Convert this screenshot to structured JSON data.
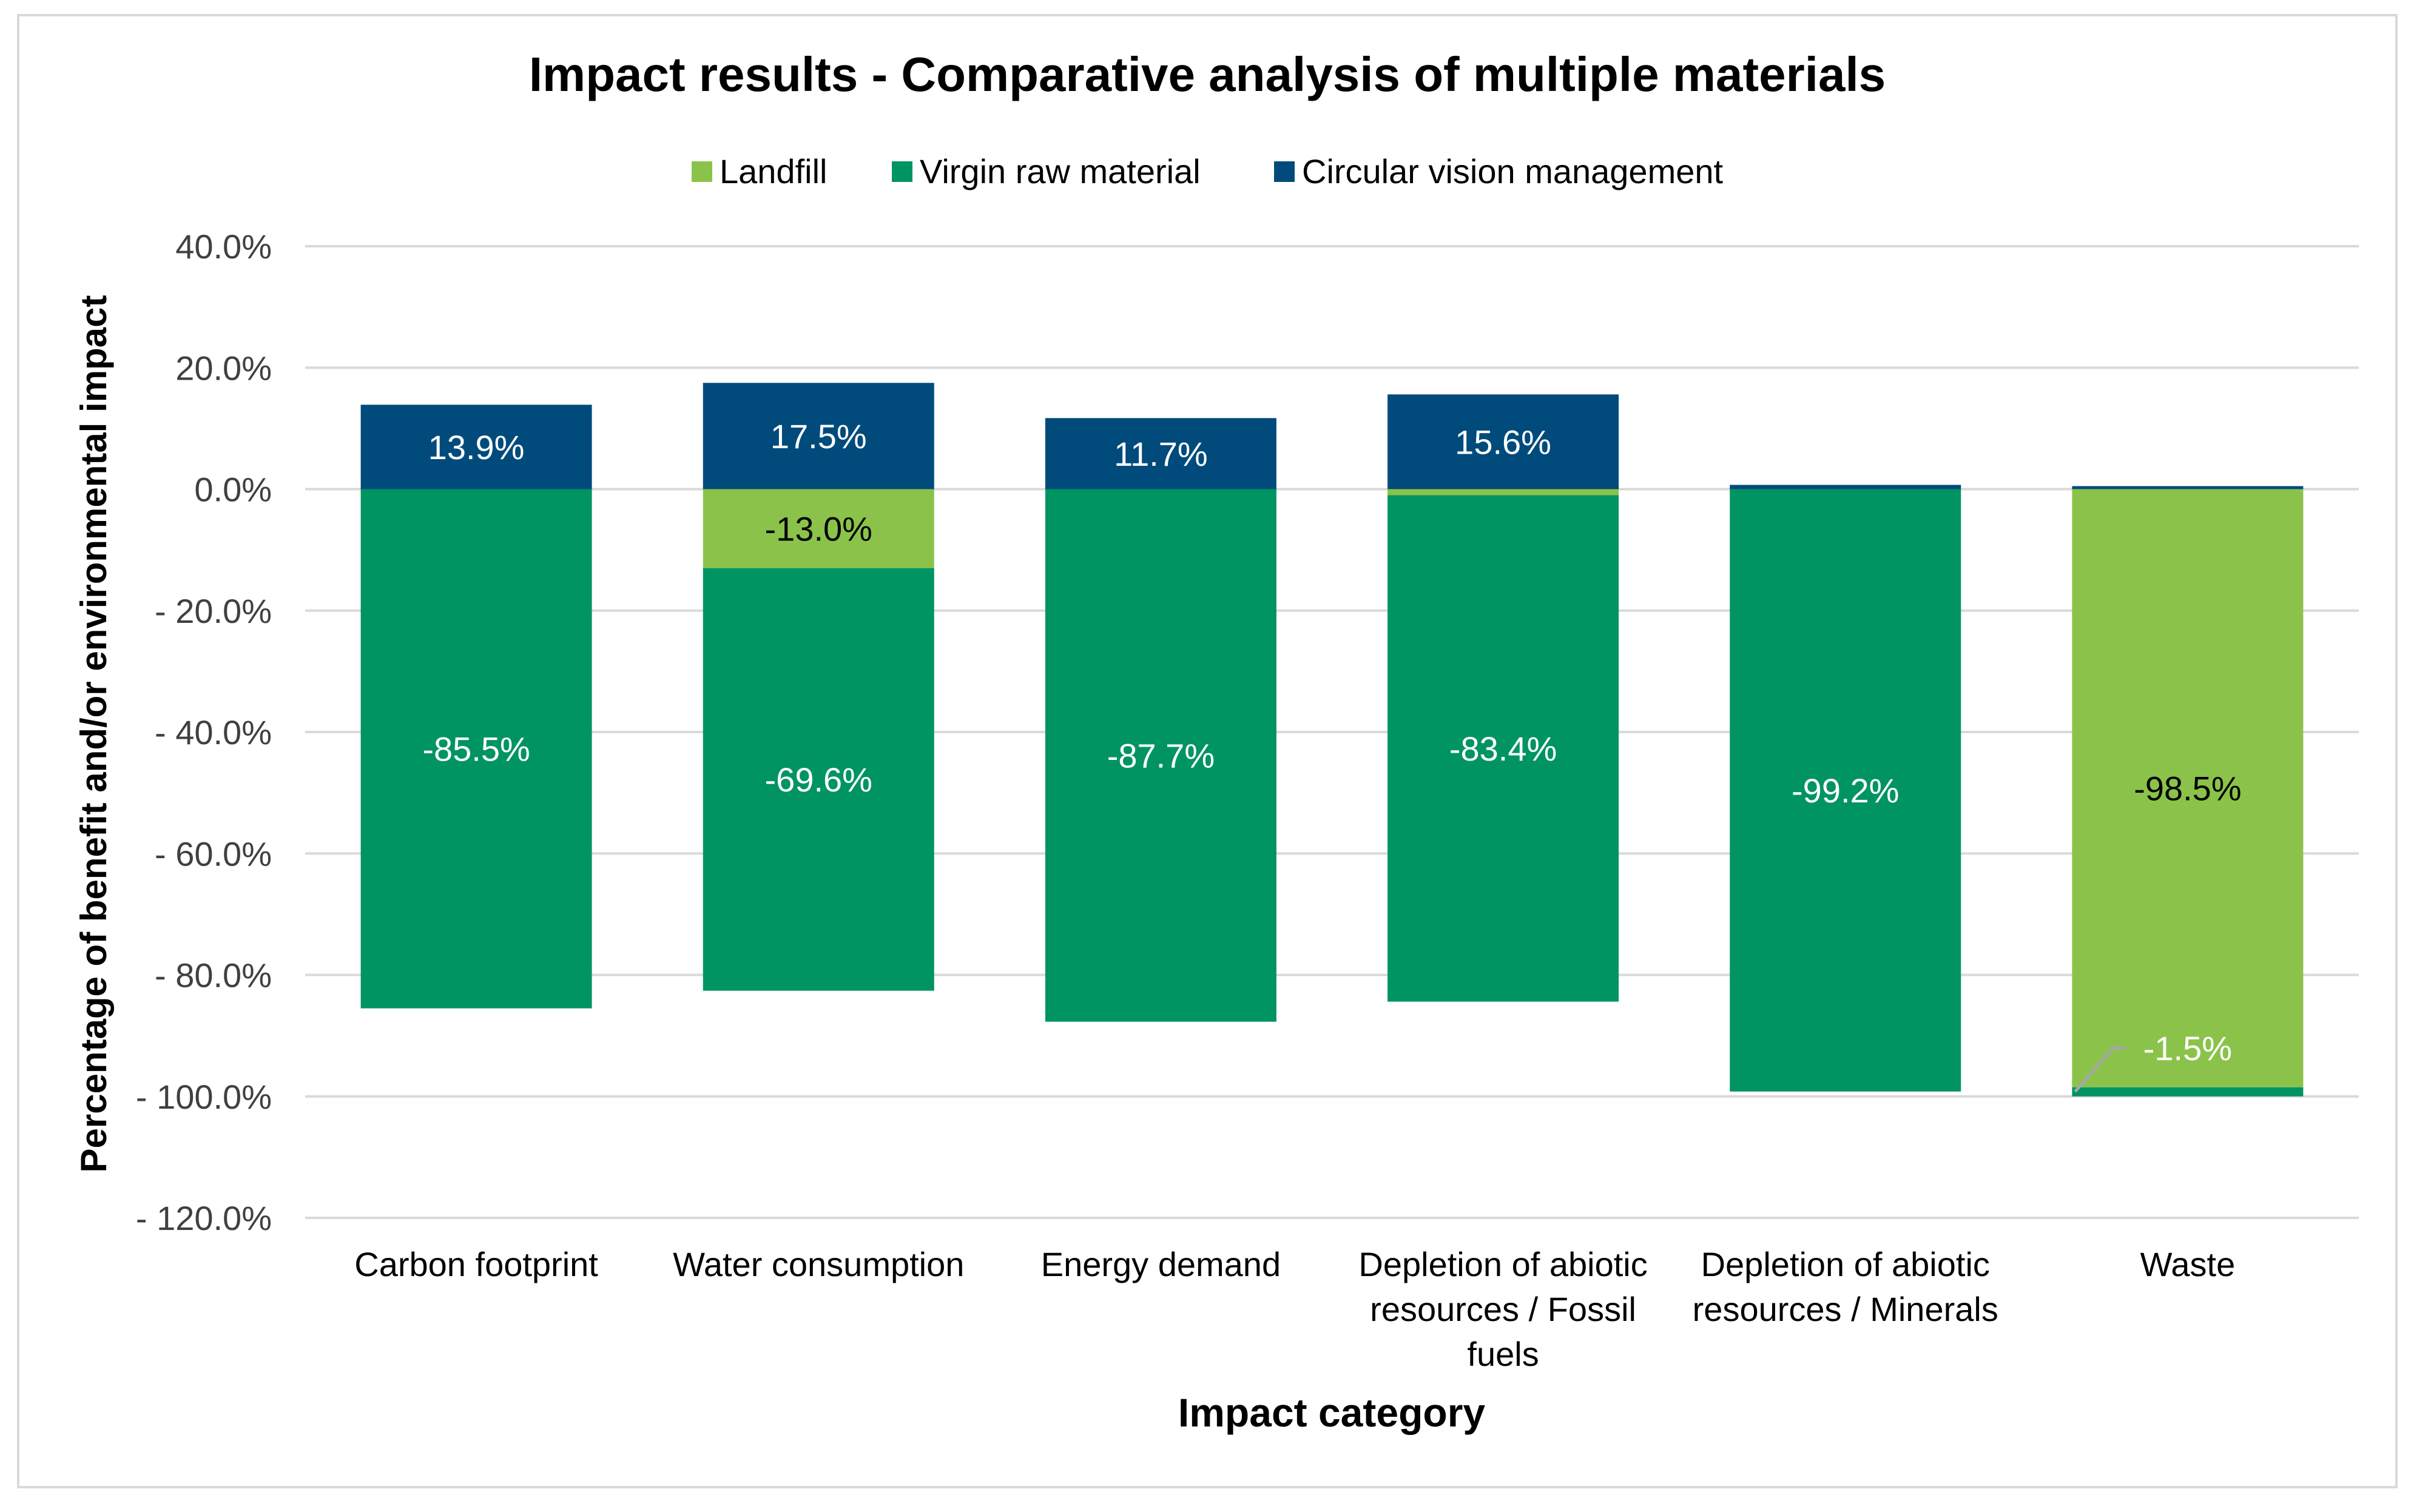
{
  "chart_data": {
    "type": "bar",
    "stacked": true,
    "title": "Impact results - Comparative analysis of multiple materials",
    "xlabel": "Impact category",
    "ylabel": "Percentage of benefit and/or environmental impact",
    "ylim": [
      -120,
      40
    ],
    "yticks": [
      40,
      20,
      0,
      -20,
      -40,
      -60,
      -80,
      -100,
      -120
    ],
    "ytick_labels": [
      "40.0%",
      "20.0%",
      "0.0%",
      "- 20.0%",
      "- 40.0%",
      "- 60.0%",
      "- 80.0%",
      "- 100.0%",
      "- 120.0%"
    ],
    "grid": true,
    "legend_position": "top",
    "categories": [
      [
        "Carbon footprint"
      ],
      [
        "Water consumption"
      ],
      [
        "Energy demand"
      ],
      [
        "Depletion of abiotic",
        "resources / Fossil",
        "fuels"
      ],
      [
        "Depletion of abiotic",
        "resources / Minerals"
      ],
      [
        "Waste"
      ]
    ],
    "series": [
      {
        "name": "Landfill",
        "color": "#8BC34A",
        "label_color": "#000000",
        "values": [
          0,
          -13.0,
          0,
          -1.0,
          0,
          -98.5
        ],
        "labels": [
          "",
          "-13.0%",
          "",
          "",
          "",
          "-98.5%"
        ]
      },
      {
        "name": "Virgin raw material",
        "color": "#009463",
        "label_color": "#ffffff",
        "values": [
          -85.5,
          -69.6,
          -87.7,
          -83.4,
          -99.2,
          -1.5
        ],
        "labels": [
          "-85.5%",
          "-69.6%",
          "-87.7%",
          "-83.4%",
          "-99.2%",
          "-1.5%"
        ]
      },
      {
        "name": "Circular vision management",
        "color": "#004B7C",
        "label_color": "#ffffff",
        "values": [
          13.9,
          17.5,
          11.7,
          15.6,
          0.7,
          0.5
        ],
        "labels": [
          "13.9%",
          "17.5%",
          "11.7%",
          "15.6%",
          "",
          ""
        ]
      }
    ]
  }
}
